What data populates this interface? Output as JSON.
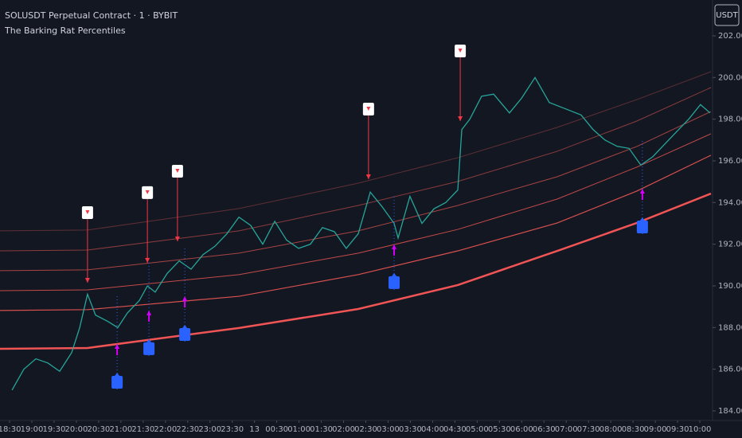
{
  "chart_data": {
    "type": "line",
    "title": "SOLUSDT Perpetual Contract · 1 · BYBIT",
    "subtitle": "The Barking Rat Percentiles",
    "currency": "USDT",
    "xlim": [
      -0.43,
      31.5
    ],
    "ylim": [
      183.54,
      203.72
    ],
    "xticks": [
      {
        "value": 0,
        "label": "18:30"
      },
      {
        "value": 1,
        "label": "19:00"
      },
      {
        "value": 2,
        "label": "19:30"
      },
      {
        "value": 3,
        "label": "20:00"
      },
      {
        "value": 4,
        "label": "20:30"
      },
      {
        "value": 5,
        "label": "21:00"
      },
      {
        "value": 6,
        "label": "21:30"
      },
      {
        "value": 7,
        "label": "22:00"
      },
      {
        "value": 8,
        "label": "22:30"
      },
      {
        "value": 9,
        "label": "23:00"
      },
      {
        "value": 10,
        "label": "23:30"
      },
      {
        "value": 11,
        "label": "13"
      },
      {
        "value": 12,
        "label": "00:30"
      },
      {
        "value": 13,
        "label": "01:00"
      },
      {
        "value": 14,
        "label": "01:30"
      },
      {
        "value": 15,
        "label": "02:00"
      },
      {
        "value": 16,
        "label": "02:30"
      },
      {
        "value": 17,
        "label": "03:00"
      },
      {
        "value": 18,
        "label": "03:30"
      },
      {
        "value": 19,
        "label": "04:00"
      },
      {
        "value": 20,
        "label": "04:30"
      },
      {
        "value": 21,
        "label": "05:00"
      },
      {
        "value": 22,
        "label": "05:30"
      },
      {
        "value": 23,
        "label": "06:00"
      },
      {
        "value": 24,
        "label": "06:30"
      },
      {
        "value": 25,
        "label": "07:00"
      },
      {
        "value": 26,
        "label": "07:30"
      },
      {
        "value": 27,
        "label": "08:00"
      },
      {
        "value": 28,
        "label": "08:30"
      },
      {
        "value": 29,
        "label": "09:00"
      },
      {
        "value": 30,
        "label": "09:30"
      },
      {
        "value": 31,
        "label": "10:00"
      }
    ],
    "yticks": [
      {
        "value": 184,
        "label": "184.00"
      },
      {
        "value": 186,
        "label": "186.00"
      },
      {
        "value": 188,
        "label": "188.00"
      },
      {
        "value": 190,
        "label": "190.00"
      },
      {
        "value": 192,
        "label": "192.00"
      },
      {
        "value": 194,
        "label": "194.00"
      },
      {
        "value": 196,
        "label": "196.00"
      },
      {
        "value": 198,
        "label": "198.00"
      },
      {
        "value": 200,
        "label": "200.00"
      },
      {
        "value": 202,
        "label": "202.00"
      }
    ],
    "price": {
      "color": "#26a69a",
      "x": [
        0.11,
        0.64,
        1.18,
        1.72,
        2.25,
        2.79,
        3.15,
        3.5,
        3.86,
        4.4,
        4.86,
        5.29,
        5.83,
        6.19,
        6.54,
        7.08,
        7.62,
        8.15,
        8.69,
        9.22,
        9.76,
        10.3,
        10.83,
        11.37,
        11.91,
        12.44,
        12.98,
        13.51,
        14.05,
        14.59,
        15.12,
        15.66,
        16.2,
        16.73,
        17.27,
        17.45,
        17.98,
        18.52,
        19.06,
        19.59,
        20.13,
        20.31,
        20.67,
        21.2,
        21.74,
        22.45,
        22.99,
        23.6,
        24.24,
        24.96,
        25.67,
        26.21,
        26.74,
        27.28,
        27.82,
        28.35,
        28.89,
        29.42,
        29.96,
        30.5,
        31.03,
        31.46
      ],
      "values": [
        185.0,
        186.0,
        186.5,
        186.3,
        185.9,
        186.8,
        188.0,
        189.6,
        188.6,
        188.3,
        188.0,
        188.7,
        189.3,
        190.0,
        189.7,
        190.6,
        191.2,
        190.8,
        191.5,
        191.9,
        192.5,
        193.3,
        192.9,
        192.0,
        193.1,
        192.2,
        191.8,
        192.0,
        192.8,
        192.6,
        191.8,
        192.5,
        194.5,
        193.8,
        193.0,
        192.3,
        194.3,
        193.0,
        193.7,
        194.0,
        194.6,
        197.5,
        198.0,
        199.1,
        199.2,
        198.3,
        199.0,
        200.0,
        198.8,
        198.5,
        198.2,
        197.5,
        197.0,
        196.7,
        196.6,
        195.8,
        196.2,
        196.8,
        197.4,
        198.0,
        198.7,
        198.3
      ]
    },
    "bands": [
      {
        "color": "#f05454",
        "width": 2.5,
        "x": [
          -0.43,
          3.5,
          10.3,
          15.66,
          20.13,
          24.6,
          28.17,
          31.5
        ],
        "values": [
          186.98,
          187.02,
          187.98,
          188.89,
          190.04,
          191.68,
          193.02,
          194.43
        ]
      },
      {
        "color": "#d9504f",
        "width": 1.2,
        "x": [
          -0.43,
          3.5,
          10.3,
          15.66,
          20.13,
          24.6,
          28.17,
          31.5
        ],
        "values": [
          188.82,
          188.86,
          189.5,
          190.54,
          191.68,
          193.02,
          194.55,
          196.27
        ]
      },
      {
        "color": "#c44a4a",
        "width": 1,
        "x": [
          -0.43,
          3.5,
          10.3,
          15.66,
          20.13,
          24.6,
          28.17,
          31.5
        ],
        "values": [
          189.77,
          189.81,
          190.54,
          191.57,
          192.71,
          194.17,
          195.7,
          197.3
        ]
      },
      {
        "color": "#a84444",
        "width": 1,
        "x": [
          -0.43,
          3.5,
          10.3,
          15.66,
          20.13,
          24.6,
          28.17,
          31.5
        ],
        "values": [
          190.73,
          190.77,
          191.57,
          192.64,
          193.86,
          195.24,
          196.69,
          198.37
        ]
      },
      {
        "color": "#8a3c3e",
        "width": 1,
        "x": [
          -0.43,
          3.5,
          10.3,
          15.66,
          20.13,
          24.6,
          28.17,
          31.5
        ],
        "values": [
          191.68,
          191.72,
          192.64,
          193.86,
          195.01,
          196.46,
          197.91,
          199.52
        ]
      },
      {
        "color": "#5e2f35",
        "width": 1,
        "x": [
          -0.43,
          3.5,
          10.3,
          15.66,
          20.13,
          24.6,
          28.17,
          31.5
        ],
        "values": [
          192.64,
          192.68,
          193.71,
          194.93,
          196.15,
          197.61,
          198.94,
          200.28
        ]
      }
    ],
    "sell_signals": {
      "color": "#f23645",
      "x": [
        3.5,
        6.19,
        7.54,
        16.12,
        20.24
      ],
      "values": [
        190.15,
        191.11,
        192.14,
        195.12,
        197.91
      ]
    },
    "buy_signals": {
      "color": "#2962ff",
      "arrow_color": "#d500f9",
      "x": [
        4.83,
        6.26,
        7.87,
        17.27,
        28.42
      ],
      "values": [
        187.21,
        188.82,
        189.5,
        191.99,
        194.66
      ]
    }
  }
}
